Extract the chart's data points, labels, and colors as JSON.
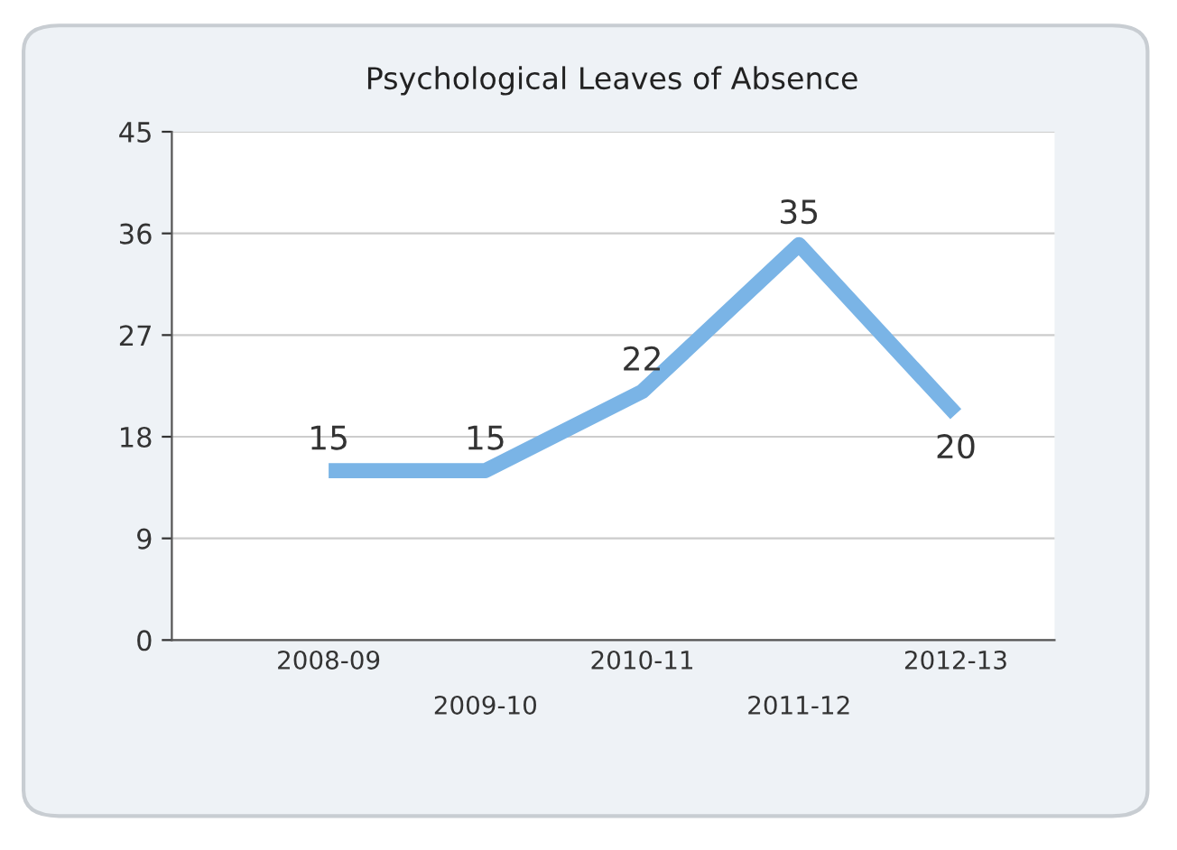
{
  "chart_data": {
    "type": "line",
    "title": "Psychological Leaves of Absence",
    "categories": [
      "2008-09",
      "2009-10",
      "2010-11",
      "2011-12",
      "2012-13"
    ],
    "series": [
      {
        "color": "#7ab4e6",
        "values": [
          15,
          15,
          22,
          35,
          20
        ]
      }
    ],
    "ylim": [
      0,
      45
    ],
    "yticks": [
      0,
      9,
      18,
      27,
      36,
      45
    ],
    "grid": "y",
    "data_labels": true,
    "marker": "none",
    "line_style": "solid"
  }
}
